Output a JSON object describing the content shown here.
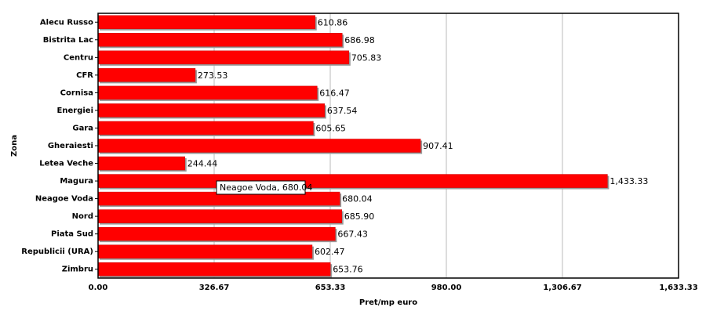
{
  "chart_data": {
    "type": "bar",
    "orientation": "horizontal",
    "x_label": "Pret/mp euro",
    "y_label": "Zona",
    "categories": [
      "Alecu Russo",
      "Bistrita Lac",
      "Centru",
      "CFR",
      "Cornisa",
      "Energiei",
      "Gara",
      "Gheraiesti",
      "Letea Veche",
      "Magura",
      "Neagoe Voda",
      "Nord",
      "Piata Sud",
      "Republicii (URA)",
      "Zimbru"
    ],
    "values": [
      610.86,
      686.98,
      705.83,
      273.53,
      616.47,
      637.54,
      605.65,
      907.41,
      244.44,
      1433.33,
      680.04,
      685.9,
      667.43,
      602.47,
      653.76
    ],
    "value_labels": [
      "610.86",
      "686.98",
      "705.83",
      "273.53",
      "616.47",
      "637.54",
      "605.65",
      "907.41",
      "244.44",
      "1,433.33",
      "680.04",
      "685.90",
      "667.43",
      "602.47",
      "653.76"
    ],
    "color": "#ff0000",
    "xlim": [
      0,
      1633.33
    ],
    "xticks": [
      {
        "value": 0,
        "label": "0.00"
      },
      {
        "value": 326.67,
        "label": "326.67"
      },
      {
        "value": 653.33,
        "label": "653.33"
      },
      {
        "value": 980,
        "label": "980.00"
      },
      {
        "value": 1306.67,
        "label": "1,306.67"
      },
      {
        "value": 1633.33,
        "label": "1,633.33"
      }
    ],
    "grid": true,
    "tooltip": "Neagoe Voda, 680.04"
  }
}
